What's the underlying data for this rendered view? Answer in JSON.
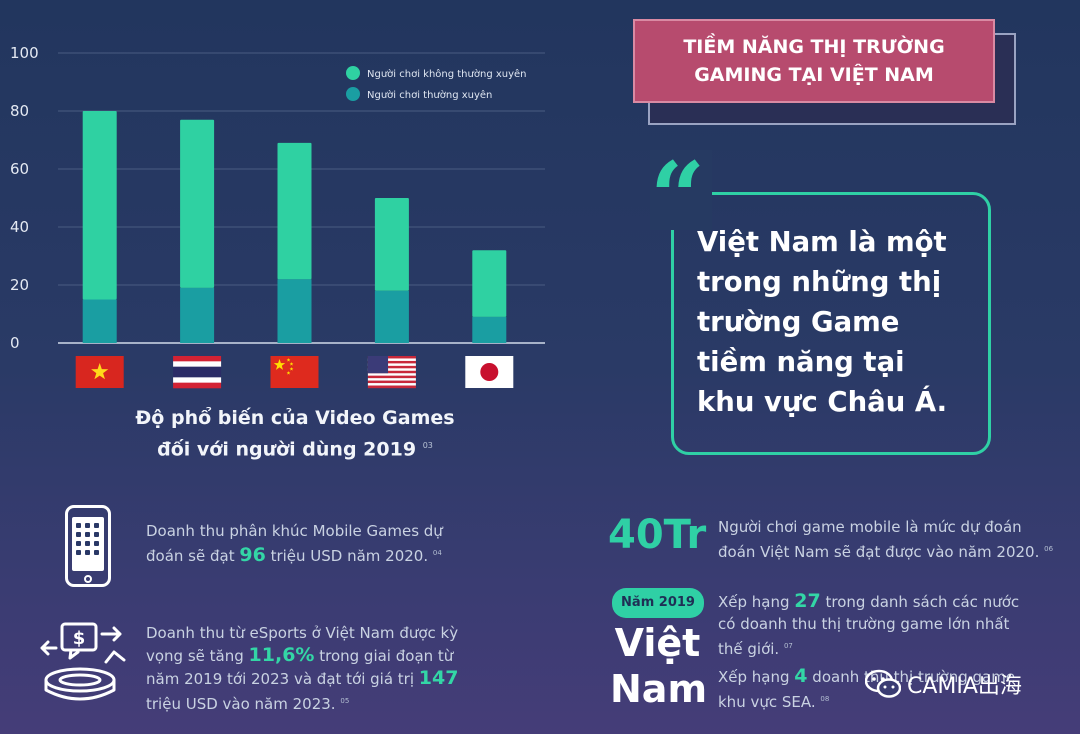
{
  "colors": {
    "irregular": "#2fd1a2",
    "regular": "#1a9ea2",
    "accent": "#2fd0a5",
    "banner": "#b74b6e"
  },
  "chart_data": {
    "type": "bar",
    "stacked": true,
    "categories": [
      "Việt Nam",
      "Thái Lan",
      "Trung Quốc",
      "Mỹ",
      "Nhật Bản"
    ],
    "category_display": "flag icons",
    "yticks": [
      "100",
      "80",
      "60",
      "40",
      "20",
      "0"
    ],
    "ylim": [
      0,
      100
    ],
    "grid": true,
    "legend_position": "top-right",
    "series": [
      {
        "name": "Người chơi thường xuyên",
        "values": [
          15,
          19,
          22,
          18,
          9
        ]
      },
      {
        "name": "Người chơi không thường xuyên",
        "values": [
          65,
          58,
          47,
          32,
          23
        ]
      }
    ],
    "legend": [
      "Người chơi không thường xuyên",
      "Người chơi thường xuyên"
    ],
    "title_lines": [
      "Độ phổ biến của Video Games",
      "đối với người dùng 2019"
    ],
    "title_ref": "03"
  },
  "banner": {
    "line1": "TIỀM NĂNG THỊ TRƯỜNG",
    "line2": "GAMING TẠI VIỆT NAM"
  },
  "quote": {
    "mark": "“",
    "lines": [
      "Việt Nam là một",
      "trong những thị",
      "trường Game",
      "tiềm năng tại",
      "khu vực Châu Á."
    ]
  },
  "mobile": {
    "pre": "Doanh thu phân khúc Mobile Games dự",
    "pre2": "đoán sẽ đạt ",
    "value": "96",
    "post": " triệu USD năm 2020.",
    "ref": "04",
    "icon": "smartphone-icon"
  },
  "esports": {
    "line1": "Doanh thu từ eSports ở Việt Nam được kỳ",
    "line2_pre": "vọng sẽ tăng ",
    "value1": "11,6%",
    "line2_post": " trong giai đoạn từ",
    "line3_pre": "năm 2019 tới 2023 và đạt tới giá trị ",
    "value2": "147",
    "line4": "triệu USD vào năm 2023.",
    "ref": "05",
    "icon": "esports-stadium-icon"
  },
  "players": {
    "big": "40Tr",
    "line1": "Người chơi game mobile là mức dự đoán",
    "line2": "đoán Việt Nam sẽ đạt được vào năm 2020.",
    "ref": "06"
  },
  "ranking": {
    "year": "Năm 2019",
    "country_line1": "Việt",
    "country_line2": "Nam",
    "r1_pre": "Xếp hạng ",
    "r1_value": "27",
    "r1_post": " trong danh sách các nước",
    "r1_line2": "có doanh thu thị trường game lớn nhất",
    "r1_line3": "thế giới.",
    "r1_ref": "07",
    "r2_pre": "Xếp hạng ",
    "r2_value": "4",
    "r2_post": " doanh thu thị trường game",
    "r2_line2": "khu vực SEA.",
    "r2_ref": "08"
  },
  "watermark": {
    "text": "CAMIA出海",
    "icon": "wechat-icon"
  }
}
